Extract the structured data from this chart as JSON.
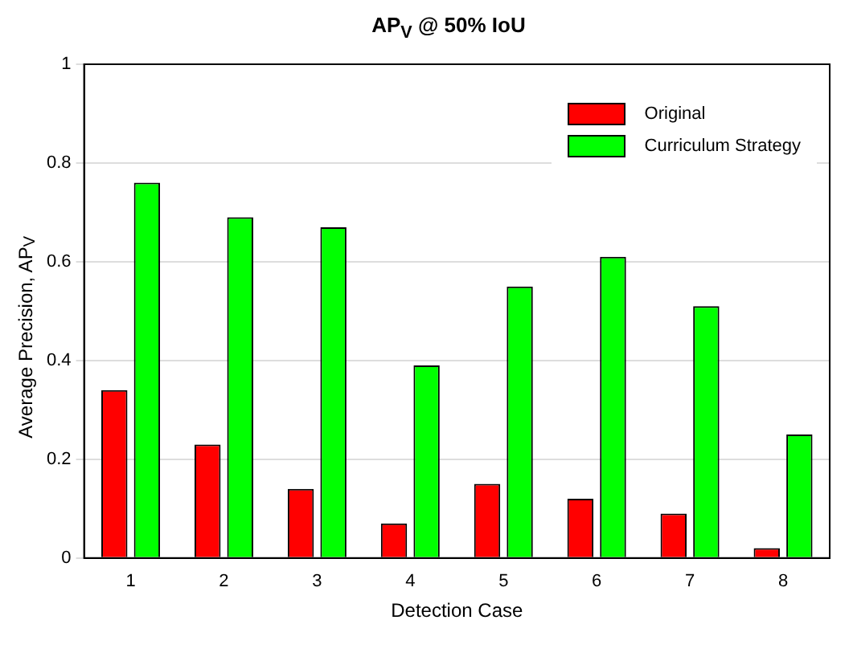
{
  "chart_data": {
    "type": "bar",
    "title": "AP$_{V}$ @ 50% IoU",
    "xlabel": "Detection Case",
    "ylabel": "Average Precision, AP$_{V}$",
    "categories": [
      "1",
      "2",
      "3",
      "4",
      "5",
      "6",
      "7",
      "8"
    ],
    "series": [
      {
        "name": "Original",
        "color": "#ff0000",
        "values": [
          0.34,
          0.23,
          0.14,
          0.07,
          0.15,
          0.12,
          0.09,
          0.02
        ]
      },
      {
        "name": "Curriculum Strategy",
        "color": "#00ff00",
        "values": [
          0.76,
          0.69,
          0.67,
          0.39,
          0.55,
          0.61,
          0.51,
          0.25
        ]
      }
    ],
    "ylim": [
      0,
      1
    ],
    "yticks": [
      0,
      0.2,
      0.4,
      0.6,
      0.8,
      1
    ],
    "grid": "y",
    "legend": "top right"
  }
}
